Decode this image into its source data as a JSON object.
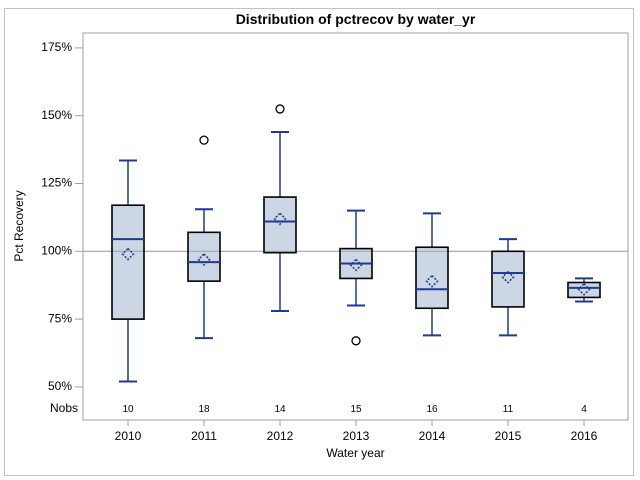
{
  "chart": {
    "title": "Distribution of pctrecov by water_yr",
    "xlabel": "Water year",
    "ylabel": "Pct Recovery",
    "nobs_label": "Nobs"
  },
  "chart_data": {
    "type": "boxplot",
    "title": "Distribution of pctrecov by water_yr",
    "xlabel": "Water year",
    "ylabel": "Pct Recovery",
    "categories": [
      "2010",
      "2011",
      "2012",
      "2013",
      "2014",
      "2015",
      "2016"
    ],
    "nobs": [
      10,
      18,
      14,
      15,
      16,
      11,
      4
    ],
    "boxes": [
      {
        "low": 52,
        "q1": 75,
        "median": 104.5,
        "q3": 117,
        "high": 133.5,
        "mean": 99,
        "outliers": []
      },
      {
        "low": 68,
        "q1": 89,
        "median": 96,
        "q3": 107,
        "high": 115.5,
        "mean": 97,
        "outliers": [
          141
        ]
      },
      {
        "low": 78,
        "q1": 99.5,
        "median": 111,
        "q3": 120,
        "high": 144,
        "mean": 112,
        "outliers": [
          152.5
        ]
      },
      {
        "low": 80,
        "q1": 90,
        "median": 95.5,
        "q3": 101,
        "high": 115,
        "mean": 95,
        "outliers": [
          67
        ]
      },
      {
        "low": 69,
        "q1": 79,
        "median": 86,
        "q3": 101.5,
        "high": 114,
        "mean": 89,
        "outliers": []
      },
      {
        "low": 69,
        "q1": 79.5,
        "median": 92,
        "q3": 100,
        "high": 104.5,
        "mean": 90.5,
        "outliers": []
      },
      {
        "low": 81.5,
        "q1": 83,
        "median": 86.5,
        "q3": 88.5,
        "high": 90,
        "mean": 86,
        "outliers": []
      }
    ],
    "y_axis": {
      "tick_values": [
        175,
        150,
        125,
        100,
        75,
        50
      ],
      "tick_labels": [
        "175%",
        "150%",
        "125%",
        "100%",
        "75%",
        "50%"
      ],
      "frame_value_range": [
        37.8,
        180.5
      ]
    },
    "reference_line": 100,
    "grid": false,
    "legend": "none",
    "colors": {
      "box_fill": "#cdd6e5",
      "box_stroke": "#000000",
      "line": "#1f3a8f",
      "outlier_stroke": "#000000",
      "reference": "#a6a6a6",
      "frame": "#a0a0a0"
    }
  }
}
